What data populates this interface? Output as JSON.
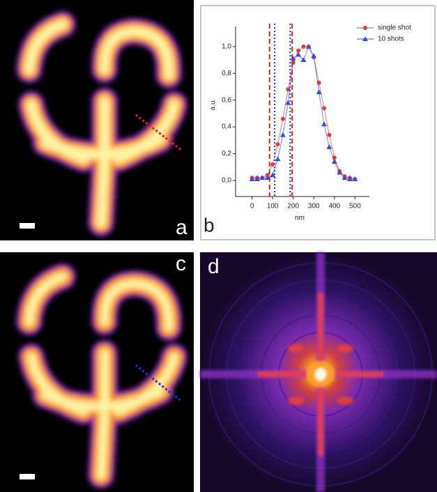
{
  "panel_labels": [
    "a",
    "b",
    "c",
    "d"
  ],
  "chart_data": {
    "type": "line",
    "x_label": "nm",
    "y_label": "a.u.",
    "x": [
      0,
      25,
      50,
      75,
      100,
      125,
      150,
      175,
      200,
      225,
      250,
      275,
      300,
      325,
      350,
      375,
      400,
      425,
      450,
      475,
      500
    ],
    "series": [
      {
        "name": "single shot",
        "color": "#e03a3a",
        "marker": "circle",
        "values": [
          0.02,
          0.02,
          0.02,
          0.04,
          0.12,
          0.27,
          0.46,
          0.68,
          0.88,
          0.97,
          1.0,
          1.0,
          0.92,
          0.73,
          0.54,
          0.34,
          0.17,
          0.07,
          0.03,
          0.02,
          0.01
        ]
      },
      {
        "name": "10 shots",
        "color": "#3a4fd0",
        "marker": "triangle",
        "values": [
          0.01,
          0.01,
          0.02,
          0.02,
          0.04,
          0.16,
          0.34,
          0.58,
          0.91,
          0.94,
          0.9,
          1.0,
          0.93,
          0.66,
          0.42,
          0.25,
          0.14,
          0.06,
          0.02,
          0.01,
          0.01
        ]
      }
    ],
    "vlines": [
      {
        "x": 85,
        "color": "#d02020",
        "style": "dashed"
      },
      {
        "x": 195,
        "color": "#d02020",
        "style": "dashed"
      },
      {
        "x": 110,
        "color": "#2030d0",
        "style": "dotted"
      },
      {
        "x": 185,
        "color": "#2030d0",
        "style": "dotted"
      }
    ],
    "xlim": [
      -80,
      570
    ],
    "ylim": [
      -0.12,
      1.15
    ],
    "xticks": [
      0,
      100,
      200,
      300,
      400,
      500
    ],
    "yticks": [
      {
        "value": 0,
        "label": "0,0"
      },
      {
        "value": 0.2,
        "label": "0,2"
      },
      {
        "value": 0.4,
        "label": "0,4"
      },
      {
        "value": 0.6,
        "label": "0,6"
      },
      {
        "value": 0.8,
        "label": "0,8"
      },
      {
        "value": 1.0,
        "label": "1,0"
      }
    ],
    "legend": "upper right",
    "grid": false
  }
}
